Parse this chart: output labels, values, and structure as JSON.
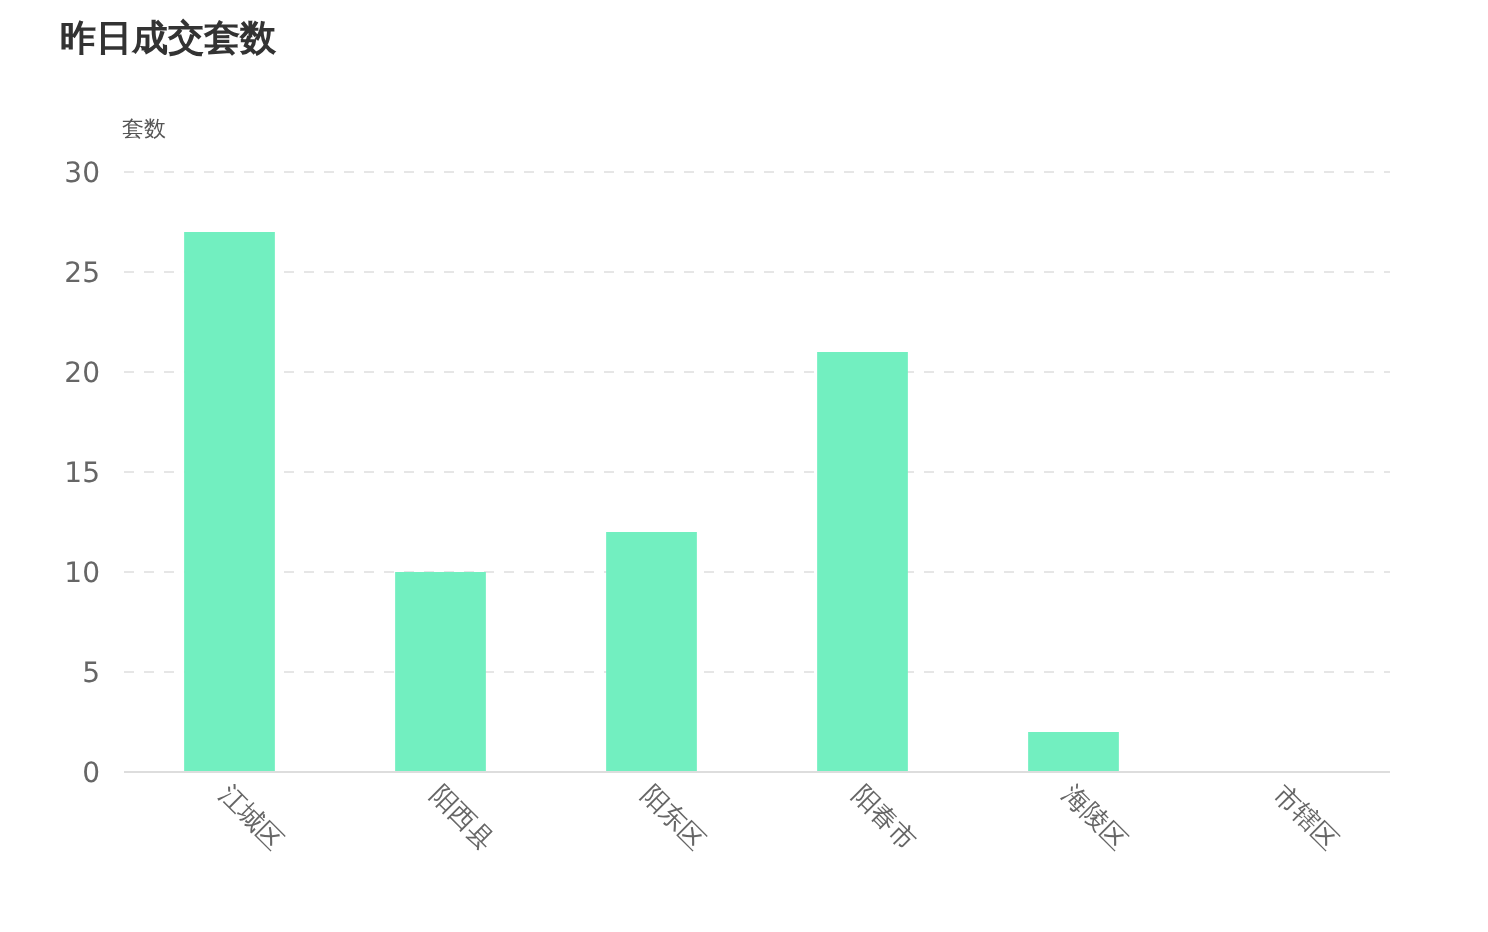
{
  "chart_data": {
    "type": "bar",
    "title": "昨日成交套数",
    "ylabel": "套数",
    "categories": [
      "江城区",
      "阳西县",
      "阳东区",
      "阳春市",
      "海陵区",
      "市辖区"
    ],
    "values": [
      27,
      10,
      12,
      21,
      2,
      0
    ],
    "color": "#72efc0",
    "ylim": [
      0,
      30
    ],
    "yticks": [
      0,
      5,
      10,
      15,
      20,
      25,
      30
    ],
    "grid": "y"
  }
}
